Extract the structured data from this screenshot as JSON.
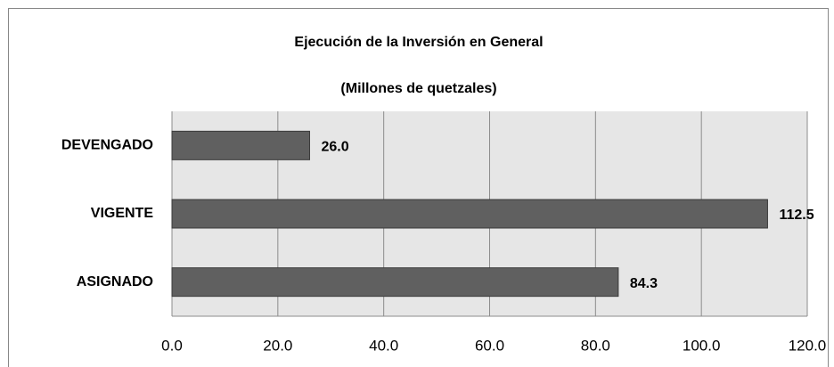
{
  "chart_data": {
    "type": "hbar",
    "title": "Ejecución de la Inversión en General",
    "subtitle": "(Millones de quetzales)",
    "categories": [
      "DEVENGADO",
      "VIGENTE",
      "ASIGNADO"
    ],
    "values": [
      26.0,
      112.5,
      84.3
    ],
    "value_labels": [
      "26.0",
      "112.5",
      "84.3"
    ],
    "color": "#606060",
    "xlim": [
      0,
      120
    ],
    "xticks": [
      {
        "value": 0,
        "label": "0.0"
      },
      {
        "value": 20,
        "label": "20.0"
      },
      {
        "value": 40,
        "label": "40.0"
      },
      {
        "value": 60,
        "label": "60.0"
      },
      {
        "value": 80,
        "label": "80.0"
      },
      {
        "value": 100,
        "label": "100.0"
      },
      {
        "value": 120,
        "label": "120.0"
      }
    ],
    "grid": true
  }
}
